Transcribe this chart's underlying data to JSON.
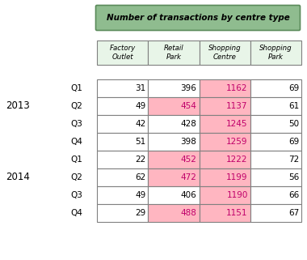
{
  "title": "Number of transactions by centre type",
  "title_bg": "#8FBC8F",
  "title_border": "#5A8A5A",
  "title_text_color": "#000000",
  "col_headers": [
    "Factory\nOutlet",
    "Retail\nPark",
    "Shopping\nCentre",
    "Shopping\nPark"
  ],
  "row_groups": [
    {
      "year": "2013",
      "quarters": [
        "Q1",
        "Q2",
        "Q3",
        "Q4"
      ],
      "data": [
        [
          31,
          396,
          1162,
          69
        ],
        [
          49,
          454,
          1137,
          61
        ],
        [
          42,
          428,
          1245,
          50
        ],
        [
          51,
          398,
          1259,
          69
        ]
      ],
      "cell_colors": [
        [
          "white",
          "white",
          "#FFB6C1",
          "white"
        ],
        [
          "white",
          "#FFB6C1",
          "#FFB6C1",
          "white"
        ],
        [
          "white",
          "white",
          "#FFB6C1",
          "white"
        ],
        [
          "white",
          "white",
          "#FFB6C1",
          "white"
        ]
      ],
      "text_colors": [
        [
          "black",
          "black",
          "#C0006A",
          "black"
        ],
        [
          "black",
          "#C0006A",
          "#C0006A",
          "black"
        ],
        [
          "black",
          "black",
          "#C0006A",
          "black"
        ],
        [
          "black",
          "black",
          "#C0006A",
          "black"
        ]
      ]
    },
    {
      "year": "2014",
      "quarters": [
        "Q1",
        "Q2",
        "Q3",
        "Q4"
      ],
      "data": [
        [
          22,
          452,
          1222,
          72
        ],
        [
          62,
          472,
          1199,
          56
        ],
        [
          49,
          406,
          1190,
          66
        ],
        [
          29,
          488,
          1151,
          67
        ]
      ],
      "cell_colors": [
        [
          "white",
          "#FFB6C1",
          "#FFB6C1",
          "white"
        ],
        [
          "white",
          "#FFB6C1",
          "#FFB6C1",
          "white"
        ],
        [
          "white",
          "white",
          "#FFB6C1",
          "white"
        ],
        [
          "white",
          "#FFB6C1",
          "#FFB6C1",
          "white"
        ]
      ],
      "text_colors": [
        [
          "black",
          "#C0006A",
          "#C0006A",
          "black"
        ],
        [
          "black",
          "#C0006A",
          "#C0006A",
          "black"
        ],
        [
          "black",
          "black",
          "#C0006A",
          "black"
        ],
        [
          "black",
          "#C0006A",
          "#C0006A",
          "black"
        ]
      ]
    }
  ],
  "header_bg": "#E8F5E8",
  "border_color": "#808080",
  "figsize": [
    3.8,
    3.21
  ],
  "dpi": 100
}
